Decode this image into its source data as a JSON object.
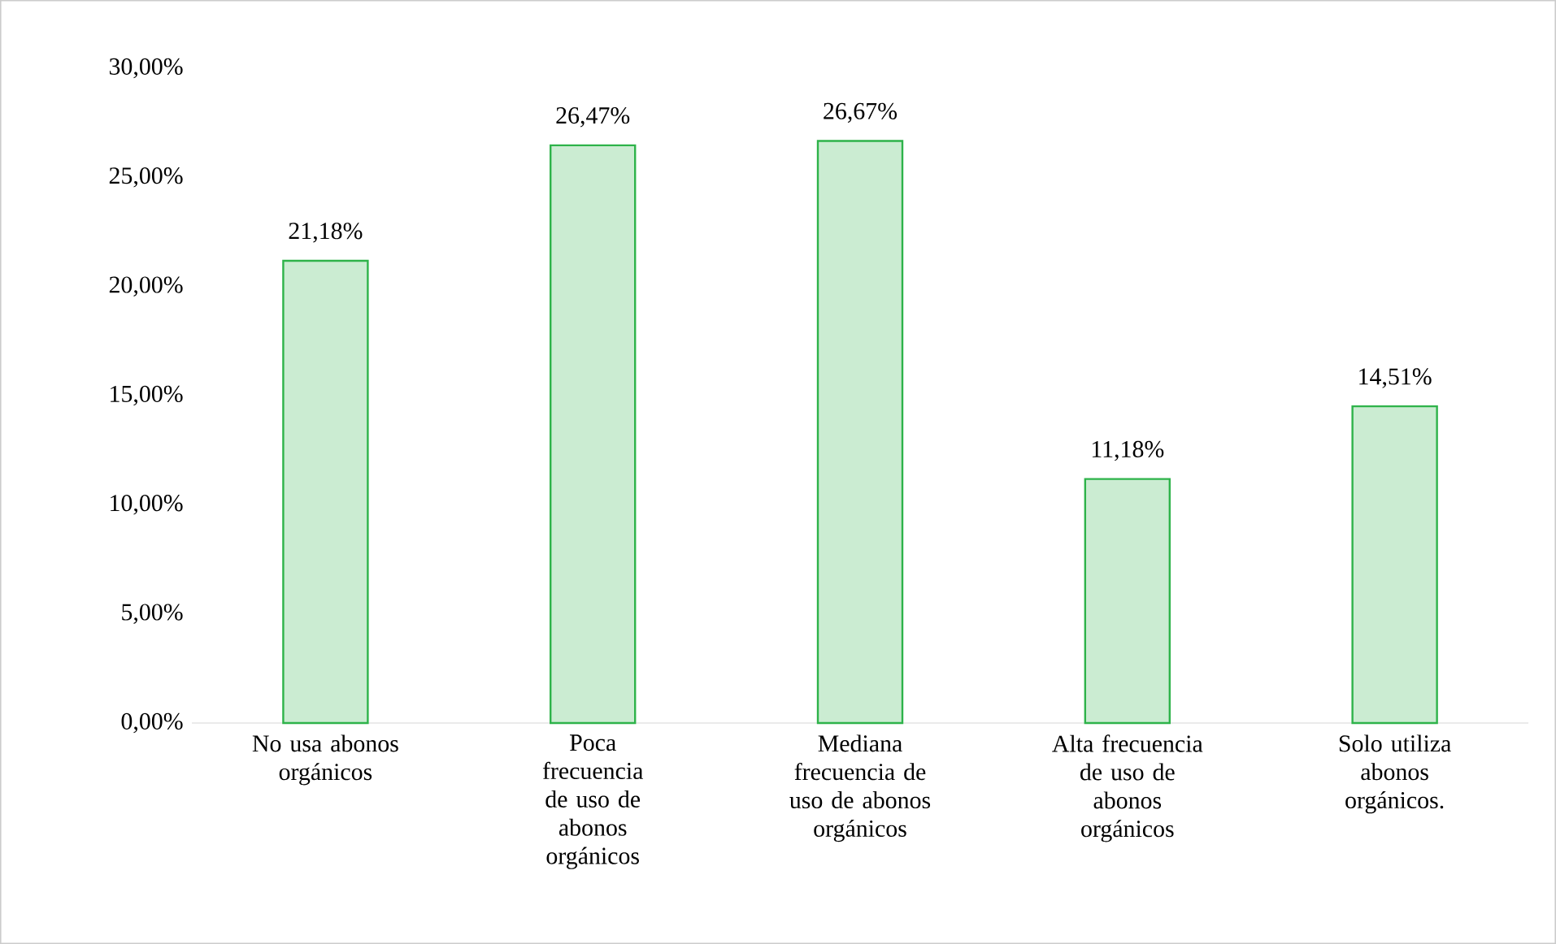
{
  "chart_data": {
    "type": "bar",
    "categories": [
      "No usa abonos orgánicos",
      "Poca frecuencia de uso de abonos orgánicos",
      "Mediana frecuencia de uso de abonos orgánicos",
      "Alta frecuencia de uso de abonos orgánicos",
      "Solo utiliza abonos orgánicos."
    ],
    "values": [
      21.18,
      26.47,
      26.67,
      11.18,
      14.51
    ],
    "value_labels": [
      "21,18%",
      "26,47%",
      "26,67%",
      "11,18%",
      "14,51%"
    ],
    "color": "#2eb34a",
    "ylim": [
      0,
      30
    ],
    "yticks": [
      {
        "value": 0,
        "label": "0,00%"
      },
      {
        "value": 5,
        "label": "5,00%"
      },
      {
        "value": 10,
        "label": "10,00%"
      },
      {
        "value": 15,
        "label": "15,00%"
      },
      {
        "value": 20,
        "label": "20,00%"
      },
      {
        "value": 25,
        "label": "25,00%"
      },
      {
        "value": 30,
        "label": "30,00%"
      }
    ],
    "grid": false
  }
}
